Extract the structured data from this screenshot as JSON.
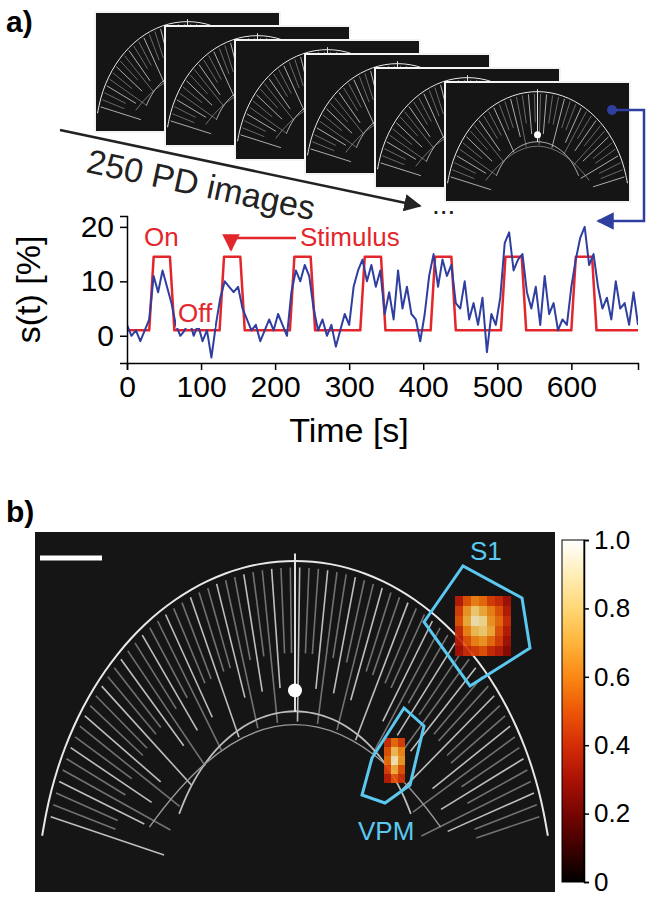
{
  "chart_data": [
    {
      "type": "line",
      "panel": "a)",
      "x_label": "Time [s]",
      "y_label": "s(t) [%]",
      "image_label": "250 PD images",
      "ellipsis": "...",
      "annotations": [
        "On",
        "Off",
        "Stimulus"
      ],
      "xlim": [
        0,
        690
      ],
      "xticks": [
        0,
        100,
        200,
        300,
        400,
        500,
        600
      ],
      "ylim": [
        -5,
        22
      ],
      "yticks": [
        0,
        10,
        20
      ],
      "grid": false,
      "series": [
        {
          "color": "#2f3fa0",
          "x": [
            0,
            6,
            12,
            18,
            24,
            30,
            36,
            42,
            48,
            54,
            60,
            66,
            72,
            78,
            84,
            90,
            96,
            102,
            108,
            114,
            120,
            126,
            132,
            138,
            144,
            150,
            156,
            162,
            168,
            174,
            180,
            186,
            192,
            198,
            204,
            210,
            216,
            222,
            228,
            234,
            240,
            246,
            252,
            258,
            264,
            270,
            276,
            282,
            288,
            294,
            300,
            306,
            312,
            318,
            324,
            330,
            336,
            342,
            348,
            354,
            360,
            366,
            372,
            378,
            384,
            390,
            396,
            402,
            408,
            414,
            420,
            426,
            432,
            438,
            444,
            450,
            456,
            462,
            468,
            474,
            480,
            486,
            492,
            498,
            504,
            510,
            516,
            522,
            528,
            534,
            540,
            546,
            552,
            558,
            564,
            570,
            576,
            582,
            588,
            594,
            600,
            606,
            612,
            618,
            624,
            630,
            636,
            642,
            648,
            654,
            660,
            666,
            672,
            678,
            684,
            690
          ],
          "values": [
            2,
            0,
            1,
            -1,
            1,
            3,
            11,
            8,
            12,
            9,
            6,
            2,
            0,
            1,
            3,
            0,
            2,
            -1,
            1,
            -4,
            2,
            7,
            10,
            9,
            8,
            9,
            5,
            3,
            1,
            2,
            -1,
            1,
            3,
            1,
            4,
            2,
            0,
            8,
            12,
            10,
            13,
            11,
            5,
            1,
            3,
            0,
            2,
            -2,
            1,
            4,
            2,
            9,
            12,
            14,
            10,
            13,
            9,
            12,
            4,
            8,
            3,
            12,
            5,
            9,
            4,
            3,
            -1,
            4,
            11,
            15,
            9,
            14,
            11,
            13,
            6,
            5,
            10,
            3,
            6,
            2,
            7,
            -3,
            4,
            2,
            7,
            17,
            19,
            12,
            14,
            15,
            8,
            5,
            9,
            2,
            11,
            4,
            6,
            1,
            3,
            2,
            9,
            14,
            18,
            20,
            13,
            15,
            9,
            5,
            7,
            3,
            10,
            5,
            6,
            2,
            8,
            2
          ]
        },
        {
          "color": "#e3262b",
          "x": [
            0,
            30,
            36,
            58,
            64,
            125,
            131,
            153,
            159,
            220,
            226,
            248,
            254,
            315,
            321,
            343,
            349,
            410,
            416,
            438,
            444,
            505,
            511,
            533,
            539,
            600,
            606,
            628,
            634,
            690
          ],
          "values": [
            1,
            1,
            14.5,
            14.5,
            1,
            1,
            14.5,
            14.5,
            1,
            1,
            14.5,
            14.5,
            1,
            1,
            14.5,
            14.5,
            1,
            1,
            14.5,
            14.5,
            1,
            1,
            14.5,
            14.5,
            1,
            1,
            14.5,
            14.5,
            1,
            1
          ]
        }
      ]
    },
    {
      "type": "heatmap",
      "panel": "b)",
      "colorbar": {
        "range": [
          0,
          1
        ],
        "ticks": [
          0,
          0.2,
          0.4,
          0.6,
          0.8,
          {
            "value": 1,
            "label": "1.0"
          }
        ]
      },
      "regions": [
        {
          "label": "S1",
          "cells": [
            [
              0.35,
              0.5,
              0.6,
              0.55,
              0.45,
              0.4,
              0.3
            ],
            [
              0.45,
              0.65,
              0.8,
              0.7,
              0.6,
              0.5,
              0.35
            ],
            [
              0.5,
              0.7,
              0.9,
              0.85,
              0.65,
              0.55,
              0.4
            ],
            [
              0.4,
              0.6,
              0.75,
              0.8,
              0.7,
              0.5,
              0.35
            ],
            [
              0.35,
              0.5,
              0.6,
              0.65,
              0.55,
              0.45,
              0.3
            ],
            [
              0.3,
              0.4,
              0.45,
              0.5,
              0.4,
              0.35,
              0.25
            ]
          ]
        },
        {
          "label": "VPM",
          "cells": [
            [
              0.4,
              0.55,
              0.45
            ],
            [
              0.5,
              0.75,
              0.6
            ],
            [
              0.55,
              0.9,
              0.65
            ],
            [
              0.45,
              0.7,
              0.5
            ],
            [
              0.35,
              0.5,
              0.4
            ]
          ]
        }
      ]
    }
  ]
}
